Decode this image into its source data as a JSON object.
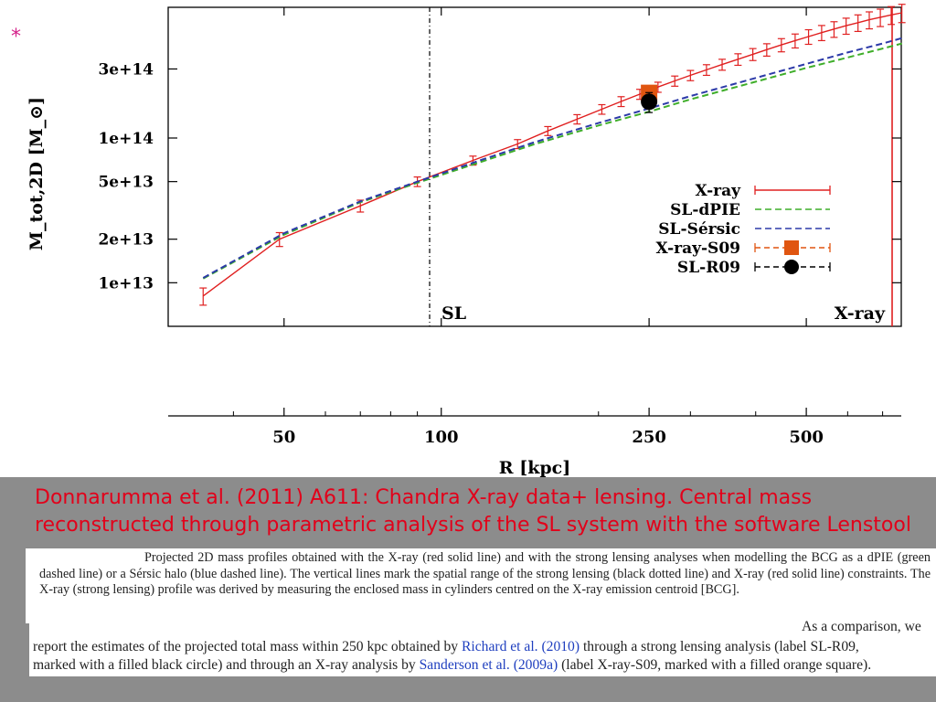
{
  "marker_symbol": "*",
  "slide_title_line1": "Donnarumma et al. (2011) A611: Chandra X-ray data+ lensing. Central mass",
  "slide_title_line2": "reconstructed through parametric analysis of the SL system with the software Lenstool",
  "caption": "Projected 2D mass profiles obtained with the X-ray (red solid line) and with the strong lensing analyses when modelling the BCG as a dPIE (green dashed line) or a Sérsic halo (blue dashed line). The vertical lines mark the spatial range of the strong lensing (black dotted line) and X-ray (red solid line) constraints. The X-ray (strong lensing) profile was derived by measuring the enclosed mass in cylinders centred on the X-ray emission centroid [BCG].",
  "body": {
    "line0_tail": "As a comparison, we",
    "line1_pre": "report the estimates of the projected total mass within 250 kpc obtained by ",
    "ref1": "Richard et al. (2010)",
    "line1_post": " through a strong lensing analysis (label SL-R09,",
    "line2_pre": "marked with a filled black circle) and through an X-ray analysis by ",
    "ref2": "Sanderson et al. (2009a)",
    "line2_post": " (label X-ray-S09, marked with a filled orange square)."
  },
  "colors": {
    "xray": "#e02020",
    "sl_dpie": "#3fae2a",
    "sl_sersic": "#2c3aa8",
    "xray_s09": "#e05510",
    "sl_r09": "#000000",
    "title": "#e2001a",
    "reference": "#1f3fbf"
  },
  "chart_data": {
    "type": "line",
    "xlabel": "R [kpc]",
    "ylabel": "M_tot,2D [M_⊙]",
    "xscale": "log",
    "yscale": "log",
    "xlim": [
      30,
      760
    ],
    "ylim": [
      5000000000000,
      800000000000000
    ],
    "x_ticks": [
      50,
      100,
      250,
      500
    ],
    "x_tick_labels": [
      "50",
      "100",
      "250",
      "500"
    ],
    "y_ticks": [
      10000000000000,
      20000000000000,
      50000000000000,
      100000000000000,
      300000000000000
    ],
    "y_tick_labels": [
      "1e+13",
      "2e+13",
      "5e+13",
      "1e+14",
      "3e+14"
    ],
    "region_labels": {
      "sl": "SL",
      "xray": "X-ray"
    },
    "vertical_lines": [
      {
        "x": 95,
        "style": "dotted",
        "color": "#000000"
      },
      {
        "x": 730,
        "style": "solid",
        "color": "#e02020"
      }
    ],
    "legend_position": "center-right",
    "series": [
      {
        "name": "X-ray",
        "style": "solid",
        "color": "#e02020",
        "error_bars": true,
        "x": [
          35,
          49,
          70,
          90,
          115,
          140,
          160,
          182,
          203,
          221,
          240,
          260,
          280,
          300,
          322,
          345,
          370,
          395,
          420,
          448,
          476,
          505,
          535,
          565,
          596,
          628,
          660,
          693,
          727,
          762
        ],
        "y": [
          8100000000000.0,
          20000000000000.0,
          34000000000000.0,
          50000000000000.0,
          70000000000000.0,
          91000000000000.0,
          112000000000000.0,
          135000000000000.0,
          158000000000000.0,
          179000000000000.0,
          201000000000000.0,
          225000000000000.0,
          248000000000000.0,
          271000000000000.0,
          296000000000000.0,
          322000000000000.0,
          350000000000000.0,
          379000000000000.0,
          408000000000000.0,
          440000000000000.0,
          471000000000000.0,
          502000000000000.0,
          535000000000000.0,
          566000000000000.0,
          597000000000000.0,
          627000000000000.0,
          656000000000000.0,
          683000000000000.0,
          709000000000000.0,
          733000000000000.0
        ],
        "err": [
          1100000000000.0,
          2200000000000.0,
          3200000000000.0,
          3800000000000.0,
          5000000000000.0,
          6500000000000.0,
          8000000000000.0,
          10000000000000.0,
          12000000000000.0,
          14000000000000.0,
          16000000000000.0,
          18000000000000.0,
          20000000000000.0,
          22000000000000.0,
          25000000000000.0,
          28000000000000.0,
          32000000000000.0,
          36000000000000.0,
          40000000000000.0,
          46000000000000.0,
          52000000000000.0,
          58000000000000.0,
          64000000000000.0,
          70000000000000.0,
          76000000000000.0,
          82000000000000.0,
          88000000000000.0,
          94000000000000.0,
          100000000000000.0,
          106000000000000.0
        ]
      },
      {
        "name": "SL-dPIE",
        "style": "dashed",
        "color": "#3fae2a",
        "error_bars": false,
        "x": [
          35,
          50,
          70,
          90,
          120,
          150,
          200,
          250,
          300,
          400,
          500,
          600,
          700,
          762
        ],
        "y": [
          10700000000000.0,
          21500000000000.0,
          36000000000000.0,
          49000000000000.0,
          69000000000000.0,
          90000000000000.0,
          122000000000000.0,
          152000000000000.0,
          185000000000000.0,
          245000000000000.0,
          305000000000000.0,
          360000000000000.0,
          415000000000000.0,
          450000000000000.0
        ]
      },
      {
        "name": "SL-Sérsic",
        "style": "dashed",
        "color": "#2c3aa8",
        "error_bars": false,
        "x": [
          35,
          50,
          70,
          90,
          120,
          150,
          200,
          250,
          300,
          400,
          500,
          600,
          700,
          762
        ],
        "y": [
          10800000000000.0,
          22000000000000.0,
          36500000000000.0,
          50000000000000.0,
          71000000000000.0,
          93000000000000.0,
          127000000000000.0,
          160000000000000.0,
          195000000000000.0,
          260000000000000.0,
          325000000000000.0,
          390000000000000.0,
          450000000000000.0,
          490000000000000.0
        ]
      },
      {
        "name": "X-ray-S09",
        "style": "marker-square",
        "color": "#e05510",
        "x": [
          250
        ],
        "y": [
          205000000000000.0
        ],
        "err": [
          20000000000000.0
        ]
      },
      {
        "name": "SL-R09",
        "style": "marker-circle",
        "color": "#000000",
        "x": [
          250
        ],
        "y": [
          178000000000000.0
        ],
        "err": [
          28000000000000.0
        ]
      }
    ]
  }
}
